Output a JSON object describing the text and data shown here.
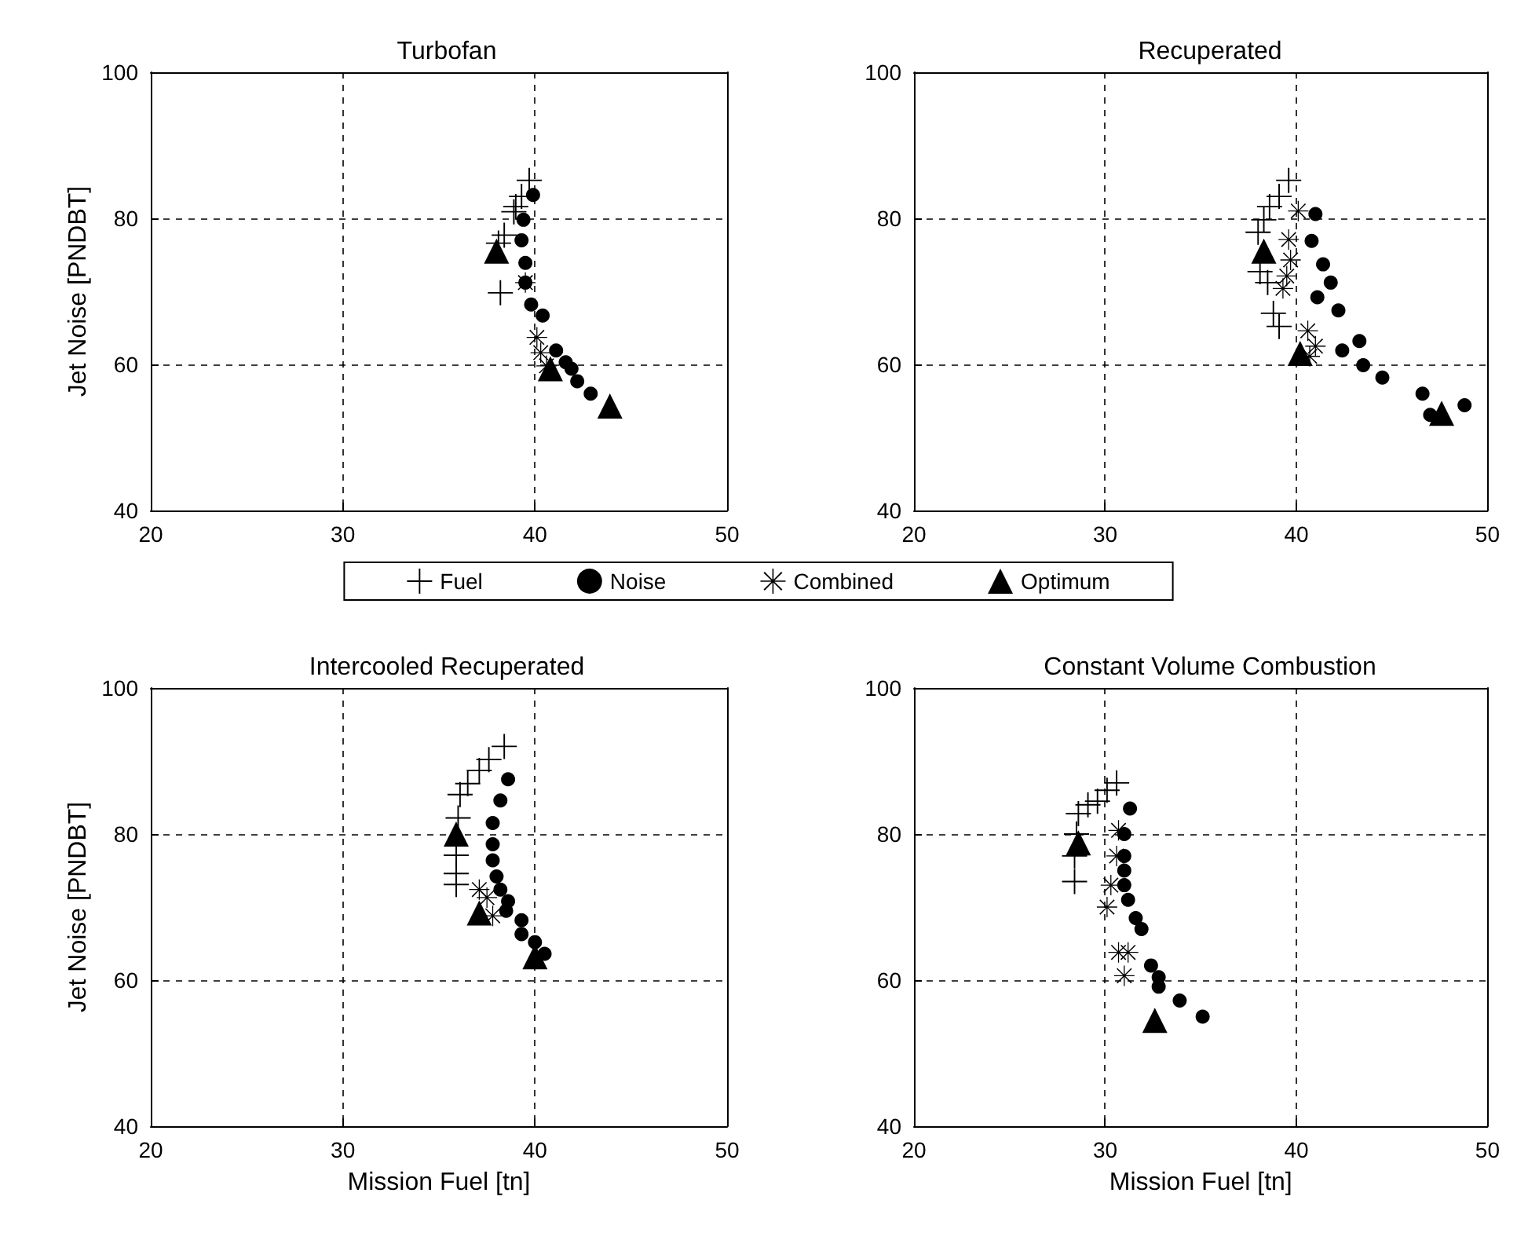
{
  "chart_data": [
    {
      "type": "scatter",
      "title": "Turbofan",
      "ylabel": "Jet Noise [PNDBT]",
      "xlim": [
        20,
        50
      ],
      "ylim": [
        40,
        100
      ],
      "xticks": [
        20,
        30,
        40,
        50
      ],
      "yticks": [
        40,
        60,
        80,
        100
      ],
      "grid": true,
      "legend": "bottom",
      "series": [
        {
          "name": "Fuel",
          "color": "#000000",
          "marker": "cross",
          "x": [
            39.7,
            39.3,
            39.0,
            38.9,
            38.4,
            38.1,
            38.2
          ],
          "values": [
            85.2,
            83.0,
            81.6,
            80.9,
            77.7,
            76.6,
            69.8
          ]
        },
        {
          "name": "Noise",
          "color": "#000000",
          "marker": "circle",
          "x": [
            39.9,
            39.4,
            39.3,
            39.5,
            39.5,
            39.8,
            40.4,
            41.1,
            41.6,
            41.9,
            42.2,
            42.9
          ],
          "values": [
            83.2,
            79.8,
            77.0,
            73.9,
            71.2,
            68.2,
            66.7,
            61.9,
            60.3,
            59.4,
            57.7,
            56.0
          ]
        },
        {
          "name": "Combined",
          "color": "#000000",
          "marker": "star",
          "x": [
            39.5,
            40.1,
            40.3,
            40.6
          ],
          "values": [
            71.2,
            63.7,
            61.6,
            59.8
          ]
        },
        {
          "name": "Optimum",
          "color": "#000000",
          "marker": "triangle",
          "x": [
            38.0,
            40.8,
            43.9
          ],
          "values": [
            75.5,
            59.4,
            54.3
          ]
        }
      ]
    },
    {
      "type": "scatter",
      "title": "Recuperated",
      "xlim": [
        20,
        50
      ],
      "ylim": [
        40,
        100
      ],
      "xticks": [
        20,
        30,
        40,
        50
      ],
      "yticks": [
        40,
        60,
        80,
        100
      ],
      "grid": true,
      "series": [
        {
          "name": "Fuel",
          "color": "#000000",
          "marker": "cross",
          "x": [
            39.6,
            39.1,
            38.6,
            38.3,
            38.0,
            38.1,
            38.5,
            38.8,
            39.1
          ],
          "values": [
            85.2,
            83.0,
            81.6,
            79.8,
            78.1,
            72.7,
            71.2,
            67.0,
            65.2
          ]
        },
        {
          "name": "Noise",
          "color": "#000000",
          "marker": "circle",
          "x": [
            41.0,
            40.8,
            41.4,
            41.8,
            41.1,
            42.2,
            43.3,
            42.4,
            43.5,
            44.5,
            46.6,
            47.0,
            48.8
          ],
          "values": [
            80.6,
            76.9,
            73.7,
            71.2,
            69.2,
            67.4,
            63.2,
            61.9,
            59.9,
            58.2,
            56.0,
            53.1,
            54.4
          ]
        },
        {
          "name": "Combined",
          "color": "#000000",
          "marker": "star",
          "x": [
            40.1,
            39.6,
            39.7,
            39.5,
            39.3,
            40.6,
            41.0,
            40.7
          ],
          "values": [
            81.0,
            77.1,
            74.3,
            72.1,
            70.4,
            64.6,
            62.5,
            61.1
          ]
        },
        {
          "name": "Optimum",
          "color": "#000000",
          "marker": "triangle",
          "x": [
            38.3,
            40.2,
            47.6
          ],
          "values": [
            75.5,
            61.5,
            53.3
          ]
        }
      ]
    },
    {
      "type": "scatter",
      "title": "Intercooled Recuperated",
      "xlabel": "Mission Fuel [tn]",
      "ylabel": "Jet Noise [PNDBT]",
      "xlim": [
        20,
        50
      ],
      "ylim": [
        40,
        100
      ],
      "xticks": [
        20,
        30,
        40,
        50
      ],
      "yticks": [
        40,
        60,
        80,
        100
      ],
      "grid": true,
      "series": [
        {
          "name": "Fuel",
          "color": "#000000",
          "marker": "cross",
          "x": [
            38.4,
            37.6,
            37.1,
            36.5,
            36.1,
            36.0,
            35.9,
            35.9,
            35.9
          ],
          "values": [
            92.0,
            90.2,
            88.7,
            86.9,
            85.4,
            82.2,
            77.1,
            74.6,
            73.1
          ]
        },
        {
          "name": "Noise",
          "color": "#000000",
          "marker": "circle",
          "x": [
            38.6,
            38.2,
            37.8,
            37.8,
            37.8,
            38.0,
            38.2,
            38.6,
            38.5,
            39.3,
            39.3,
            40.0,
            40.5
          ],
          "values": [
            87.5,
            84.6,
            81.5,
            78.6,
            76.4,
            74.2,
            72.4,
            70.8,
            69.5,
            68.2,
            66.3,
            65.2,
            63.6
          ]
        },
        {
          "name": "Combined",
          "color": "#000000",
          "marker": "star",
          "x": [
            37.1,
            37.5,
            37.8
          ],
          "values": [
            72.4,
            71.3,
            68.8
          ]
        },
        {
          "name": "Optimum",
          "color": "#000000",
          "marker": "triangle",
          "x": [
            35.9,
            37.1,
            40.0
          ],
          "values": [
            80.0,
            69.2,
            63.2
          ]
        }
      ]
    },
    {
      "type": "scatter",
      "title": "Constant Volume Combustion",
      "xlabel": "Mission Fuel [tn]",
      "xlim": [
        20,
        50
      ],
      "ylim": [
        40,
        100
      ],
      "xticks": [
        20,
        30,
        40,
        50
      ],
      "yticks": [
        40,
        60,
        80,
        100
      ],
      "grid": true,
      "series": [
        {
          "name": "Fuel",
          "color": "#000000",
          "marker": "cross",
          "x": [
            30.6,
            30.1,
            29.6,
            29.1,
            28.6,
            28.5,
            28.4,
            28.4
          ],
          "values": [
            87.0,
            86.0,
            84.5,
            84.0,
            82.8,
            80.0,
            77.0,
            73.5
          ]
        },
        {
          "name": "Noise",
          "color": "#000000",
          "marker": "circle",
          "x": [
            31.3,
            31.0,
            31.0,
            31.0,
            31.0,
            31.2,
            31.6,
            31.9,
            32.4,
            32.8,
            32.8,
            33.9,
            35.1
          ],
          "values": [
            83.5,
            80.0,
            77.0,
            75.0,
            73.0,
            71.0,
            68.5,
            67.0,
            62.0,
            60.4,
            59.1,
            57.2,
            55.0
          ]
        },
        {
          "name": "Combined",
          "color": "#000000",
          "marker": "star",
          "x": [
            30.7,
            30.6,
            30.3,
            30.1,
            30.7,
            31.2,
            31.0
          ],
          "values": [
            80.5,
            77.0,
            73.0,
            70.0,
            63.8,
            63.8,
            60.6
          ]
        },
        {
          "name": "Optimum",
          "color": "#000000",
          "marker": "triangle",
          "x": [
            28.6,
            32.6
          ],
          "values": [
            78.8,
            54.5
          ]
        }
      ]
    }
  ]
}
